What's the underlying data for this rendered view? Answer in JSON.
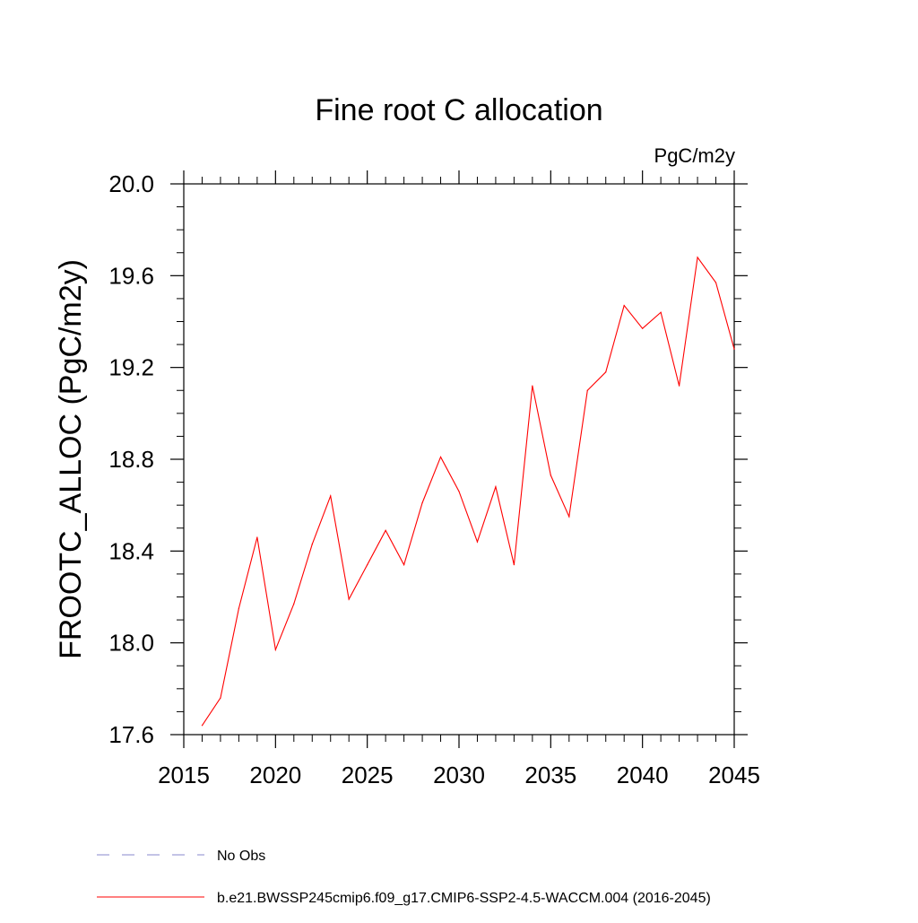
{
  "chart_data": {
    "type": "line",
    "title": "Fine root C allocation",
    "units_label": "PgC/m2y",
    "ylabel": "FROOTC_ALLOC  (PgC/m2y)",
    "xlabel": "",
    "xlim": [
      2015,
      2045
    ],
    "ylim": [
      17.6,
      20.0
    ],
    "x_ticks": [
      2015,
      2020,
      2025,
      2030,
      2035,
      2040,
      2045
    ],
    "x_tick_labels": [
      "2015",
      "2020",
      "2025",
      "2030",
      "2035",
      "2040",
      "2045"
    ],
    "y_ticks": [
      17.6,
      18.0,
      18.4,
      18.8,
      19.2,
      19.6,
      20.0
    ],
    "y_tick_labels": [
      "17.6",
      "18.0",
      "18.4",
      "18.8",
      "19.2",
      "19.6",
      "20.0"
    ],
    "x_minor_step": 1,
    "y_minor_step": 0.1,
    "grid": false,
    "series": [
      {
        "name": "b.e21.BWSSP245cmip6.f09_g17.CMIP6-SSP2-4.5-WACCM.004 (2016-2045)",
        "color": "#ff0000",
        "x": [
          2016,
          2017,
          2018,
          2019,
          2020,
          2021,
          2022,
          2023,
          2024,
          2025,
          2026,
          2027,
          2028,
          2029,
          2030,
          2031,
          2032,
          2033,
          2034,
          2035,
          2036,
          2037,
          2038,
          2039,
          2040,
          2041,
          2042,
          2043,
          2044,
          2045
        ],
        "values": [
          17.64,
          17.76,
          18.15,
          18.46,
          17.97,
          18.17,
          18.43,
          18.64,
          18.19,
          18.34,
          18.49,
          18.34,
          18.61,
          18.81,
          18.66,
          18.44,
          18.68,
          18.34,
          19.12,
          18.73,
          18.55,
          19.1,
          19.18,
          19.47,
          19.37,
          19.44,
          19.12,
          19.68,
          19.57,
          19.28
        ]
      }
    ],
    "legend": {
      "placement": "bottom-left",
      "entries": [
        {
          "label": "No Obs",
          "color": "#8888cc",
          "style": "dashed"
        },
        {
          "label": "b.e21.BWSSP245cmip6.f09_g17.CMIP6-SSP2-4.5-WACCM.004 (2016-2045)",
          "color": "#ff0000",
          "style": "solid"
        }
      ]
    }
  }
}
